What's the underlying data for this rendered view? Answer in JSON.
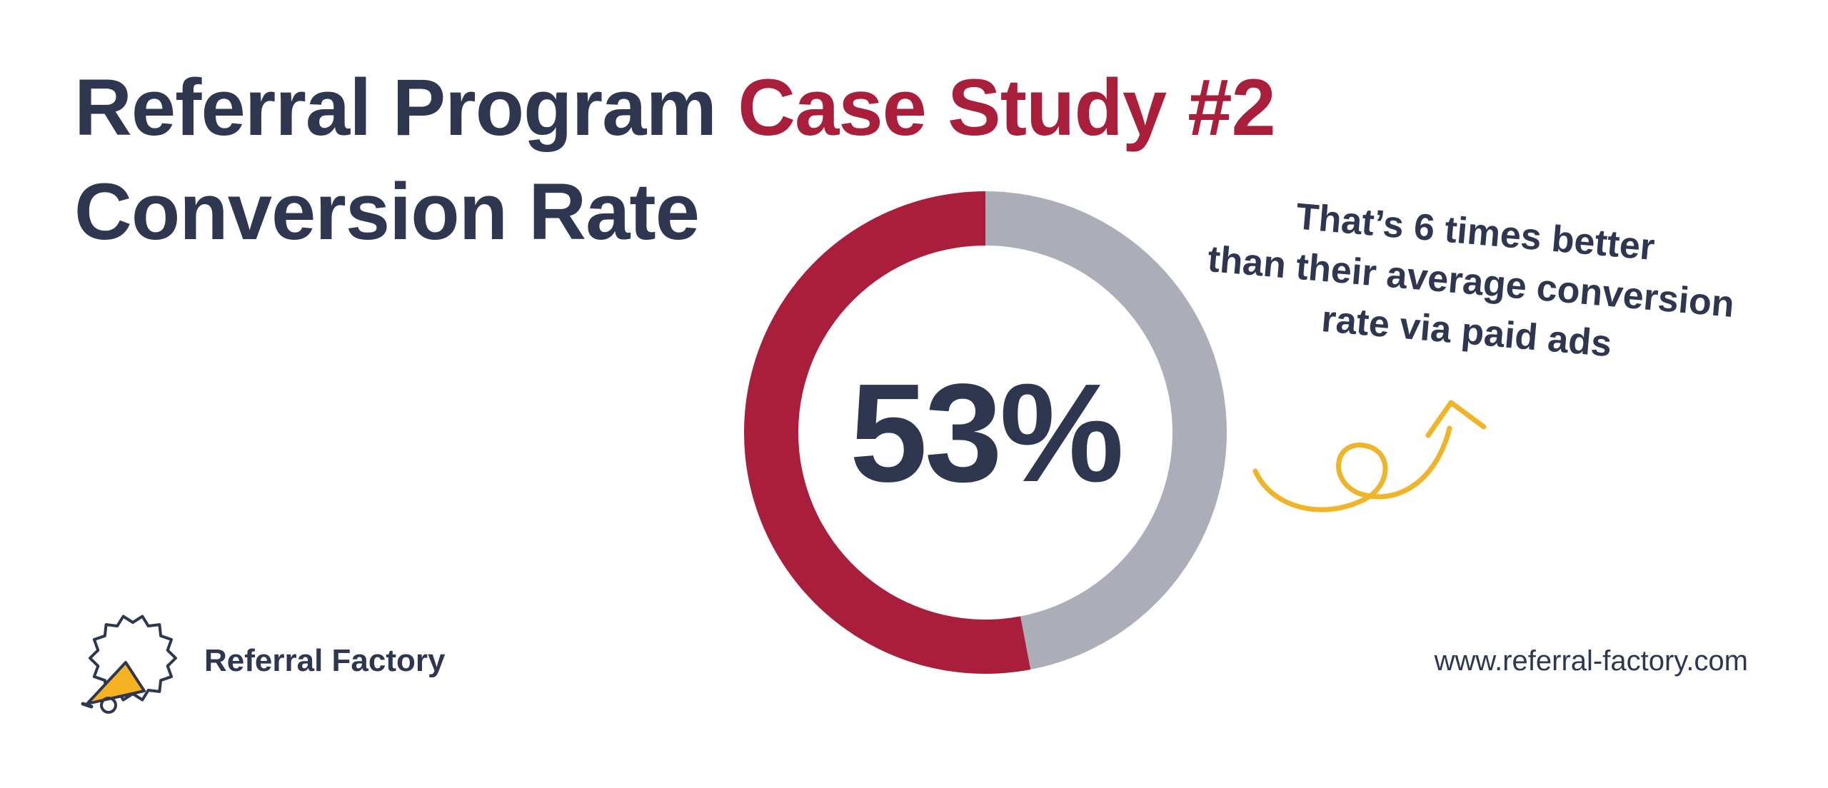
{
  "header": {
    "title_part1": "Referral Program ",
    "title_accent": "Case Study #2",
    "title_line2": "Conversion Rate"
  },
  "colors": {
    "dark": "#2f3650",
    "accent": "#a91e3b",
    "remainder": "#abadb8",
    "arrow": "#f0b429"
  },
  "chart_data": {
    "type": "pie",
    "donut": true,
    "categories": [
      "Conversion",
      "Remainder"
    ],
    "values": [
      53,
      47
    ],
    "center_label": "53%"
  },
  "callout": {
    "lines": [
      "That’s 6 times better",
      "than their average conversion",
      "rate via paid ads"
    ]
  },
  "footer": {
    "brand": "Referral Factory",
    "website": "www.referral-factory.com"
  },
  "icons": {
    "logo": "megaphone-badge-icon",
    "arrow": "curly-arrow-icon"
  }
}
